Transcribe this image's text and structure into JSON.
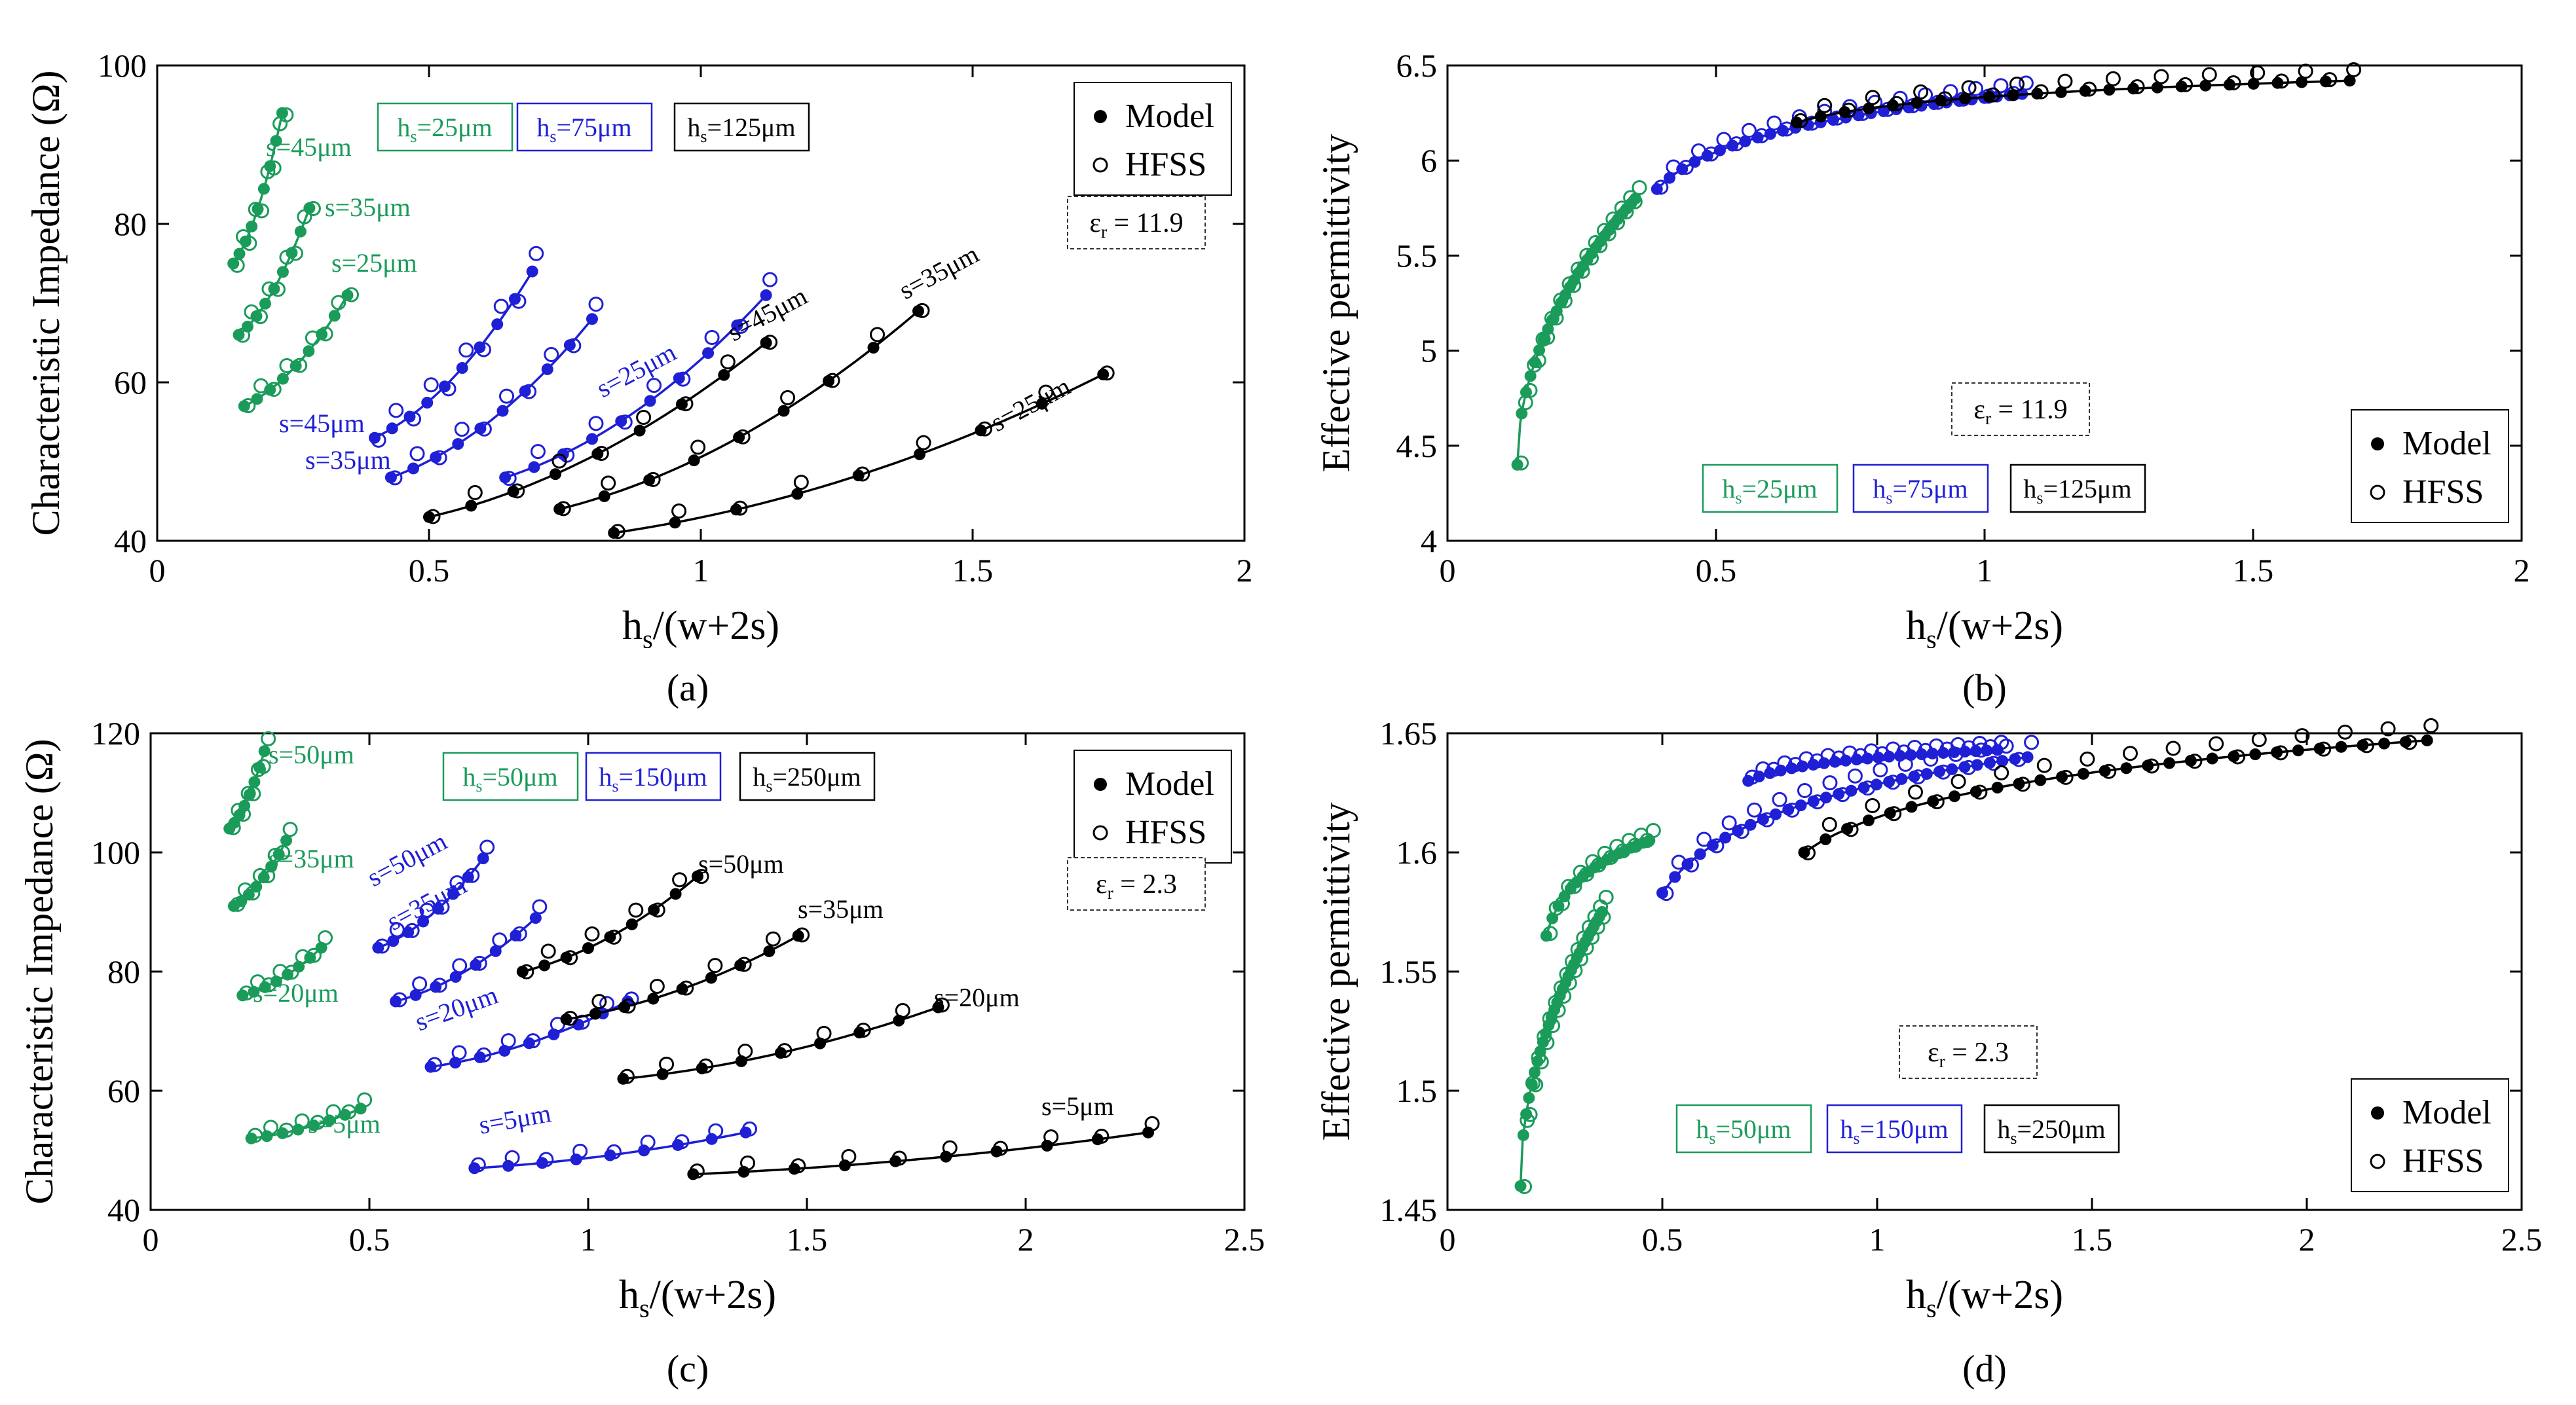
{
  "colors": {
    "green": "#1a9b5a",
    "blue": "#1f1fd6",
    "black": "#000000"
  },
  "chart_data": [
    {
      "id": "a",
      "caption": "(a)",
      "type": "scatter",
      "xlabel_main": "h",
      "xlabel_sub": "s",
      "xlabel_rest": "/(w+2s)",
      "ylabel": "Characteristic Impedance (Ω)",
      "xlim": [
        0,
        2
      ],
      "ylim": [
        40,
        100
      ],
      "xticks": [
        0,
        0.5,
        1,
        1.5,
        2
      ],
      "xtick_labels": [
        "0",
        "0.5",
        "1",
        "1.5",
        "2"
      ],
      "yticks": [
        40,
        60,
        80,
        100
      ],
      "ytick_labels": [
        "40",
        "60",
        "80",
        "100"
      ],
      "grid": false,
      "legend": {
        "position": "top-right",
        "model_label": "Model",
        "hfss_label": "HFSS"
      },
      "er_box": {
        "prefix": "ε",
        "sub": "r",
        "suffix": " = 11.9"
      },
      "hs_boxes": [
        {
          "color": "green",
          "prefix": "h",
          "sub": "s",
          "suffix": "=25μm"
        },
        {
          "color": "blue",
          "prefix": "h",
          "sub": "s",
          "suffix": "=75μm"
        },
        {
          "color": "black",
          "prefix": "h",
          "sub": "s",
          "suffix": "=125μm"
        }
      ],
      "series": [
        {
          "color": "green",
          "label": "s=45μm",
          "x0": 0.14,
          "x1": 0.23,
          "y0": 75,
          "y1": 94,
          "n": 9,
          "dy": 1.5
        },
        {
          "color": "green",
          "label": "s=35μm",
          "x0": 0.15,
          "x1": 0.28,
          "y0": 66,
          "y1": 82,
          "n": 9,
          "dy": 1.2
        },
        {
          "color": "green",
          "label": "s=25μm",
          "x0": 0.16,
          "x1": 0.35,
          "y0": 57,
          "y1": 71,
          "n": 9,
          "dy": 1.0
        },
        {
          "color": "blue",
          "label": "s=45μm",
          "x0": 0.4,
          "x1": 0.69,
          "y0": 53,
          "y1": 74,
          "n": 10,
          "dy": 1.6
        },
        {
          "color": "blue",
          "label": "s=35μm",
          "x0": 0.43,
          "x1": 0.8,
          "y0": 48,
          "y1": 68,
          "n": 10,
          "dy": 1.2
        },
        {
          "color": "blue",
          "label": "s=25μm",
          "x0": 0.64,
          "x1": 1.12,
          "y0": 48,
          "y1": 71,
          "n": 10,
          "dy": 1.3
        },
        {
          "color": "black",
          "label": "s=45μm",
          "x0": 0.5,
          "x1": 1.12,
          "y0": 43,
          "y1": 65,
          "n": 9,
          "dy": 1.0
        },
        {
          "color": "black",
          "label": "s=35μm",
          "x0": 0.74,
          "x1": 1.4,
          "y0": 44,
          "y1": 69,
          "n": 9,
          "dy": 1.0
        },
        {
          "color": "black",
          "label": "s=25μm",
          "x0": 0.84,
          "x1": 1.74,
          "y0": 41,
          "y1": 61,
          "n": 9,
          "dy": 0.8
        }
      ]
    },
    {
      "id": "b",
      "caption": "(b)",
      "type": "scatter",
      "xlabel_main": "h",
      "xlabel_sub": "s",
      "xlabel_rest": "/(w+2s)",
      "ylabel": "Effective permittivity",
      "xlim": [
        0,
        2
      ],
      "ylim": [
        4,
        6.5
      ],
      "xticks": [
        0,
        0.5,
        1,
        1.5,
        2
      ],
      "xtick_labels": [
        "0",
        "0.5",
        "1",
        "1.5",
        "2"
      ],
      "yticks": [
        4,
        4.5,
        5,
        5.5,
        6,
        6.5
      ],
      "ytick_labels": [
        "4",
        "4.5",
        "5",
        "5.5",
        "6",
        "6.5"
      ],
      "grid": false,
      "legend": {
        "position": "bottom-right",
        "model_label": "Model",
        "hfss_label": "HFSS"
      },
      "er_box": {
        "prefix": "ε",
        "sub": "r",
        "suffix": " = 11.9"
      },
      "hs_boxes": [
        {
          "color": "green",
          "prefix": "h",
          "sub": "s",
          "suffix": "=25μm"
        },
        {
          "color": "blue",
          "prefix": "h",
          "sub": "s",
          "suffix": "=75μm"
        },
        {
          "color": "black",
          "prefix": "h",
          "sub": "s",
          "suffix": "=125μm"
        }
      ],
      "series": [
        {
          "color": "green",
          "x0": 0.13,
          "x1": 0.35,
          "y0": 4.4,
          "y1": 5.8,
          "n": 28,
          "dy": 0.03,
          "shape": "sqrt"
        },
        {
          "color": "blue",
          "x0": 0.39,
          "x1": 1.07,
          "y0": 5.85,
          "y1": 6.35,
          "n": 30,
          "dy": 0.03,
          "shape": "log"
        },
        {
          "color": "black",
          "x0": 0.65,
          "x1": 1.68,
          "y0": 6.2,
          "y1": 6.42,
          "n": 24,
          "dy": 0.03,
          "shape": "log"
        }
      ]
    },
    {
      "id": "c",
      "caption": "(c)",
      "type": "scatter",
      "xlabel_main": "h",
      "xlabel_sub": "s",
      "xlabel_rest": "/(w+2s)",
      "ylabel": "Characteristic Impedance (Ω)",
      "xlim": [
        0,
        2.5
      ],
      "ylim": [
        40,
        120
      ],
      "xticks": [
        0,
        0.5,
        1,
        1.5,
        2,
        2.5
      ],
      "xtick_labels": [
        "0",
        "0.5",
        "1",
        "1.5",
        "2",
        "2.5"
      ],
      "yticks": [
        40,
        60,
        80,
        100,
        120
      ],
      "ytick_labels": [
        "40",
        "60",
        "80",
        "100",
        "120"
      ],
      "grid": false,
      "legend": {
        "position": "top-right",
        "model_label": "Model",
        "hfss_label": "HFSS"
      },
      "er_box": {
        "prefix": "ε",
        "sub": "r",
        "suffix": " = 2.3"
      },
      "hs_boxes": [
        {
          "color": "green",
          "prefix": "h",
          "sub": "s",
          "suffix": "=50μm"
        },
        {
          "color": "blue",
          "prefix": "h",
          "sub": "s",
          "suffix": "=150μm"
        },
        {
          "color": "black",
          "prefix": "h",
          "sub": "s",
          "suffix": "=250μm"
        }
      ],
      "series": [
        {
          "color": "green",
          "label": "s=50μm",
          "x0": 0.18,
          "x1": 0.26,
          "y0": 104,
          "y1": 117,
          "n": 8,
          "dy": 1.2
        },
        {
          "color": "green",
          "label": "s=35μm",
          "x0": 0.19,
          "x1": 0.31,
          "y0": 91,
          "y1": 102,
          "n": 8,
          "dy": 1.0
        },
        {
          "color": "green",
          "label": "s=20μm",
          "x0": 0.21,
          "x1": 0.39,
          "y0": 76,
          "y1": 84,
          "n": 8,
          "dy": 0.8
        },
        {
          "color": "green",
          "label": "s=5μm",
          "x0": 0.23,
          "x1": 0.48,
          "y0": 52,
          "y1": 57,
          "n": 8,
          "dy": 0.6
        },
        {
          "color": "blue",
          "label": "s=50μm",
          "x0": 0.52,
          "x1": 0.76,
          "y0": 84,
          "y1": 99,
          "n": 8,
          "dy": 1.0
        },
        {
          "color": "blue",
          "label": "s=35μm",
          "x0": 0.56,
          "x1": 0.88,
          "y0": 75,
          "y1": 89,
          "n": 8,
          "dy": 1.0
        },
        {
          "color": "blue",
          "label": "s=20μm",
          "x0": 0.64,
          "x1": 1.09,
          "y0": 64,
          "y1": 75,
          "n": 9,
          "dy": 0.8
        },
        {
          "color": "blue",
          "label": "s=5μm",
          "x0": 0.74,
          "x1": 1.36,
          "y0": 47,
          "y1": 53,
          "n": 9,
          "dy": 0.5
        },
        {
          "color": "black",
          "label": "s=50μm",
          "x0": 0.85,
          "x1": 1.25,
          "y0": 80,
          "y1": 96,
          "n": 9,
          "dy": 1.5
        },
        {
          "color": "black",
          "label": "s=35μm",
          "x0": 0.95,
          "x1": 1.48,
          "y0": 72,
          "y1": 86,
          "n": 9,
          "dy": 1.2
        },
        {
          "color": "black",
          "label": "s=20μm",
          "x0": 1.08,
          "x1": 1.8,
          "y0": 62,
          "y1": 74,
          "n": 9,
          "dy": 0.8
        },
        {
          "color": "black",
          "label": "s=5μm",
          "x0": 1.24,
          "x1": 2.28,
          "y0": 46,
          "y1": 53,
          "n": 10,
          "dy": 0.6
        }
      ]
    },
    {
      "id": "d",
      "caption": "(d)",
      "type": "scatter",
      "xlabel_main": "h",
      "xlabel_sub": "s",
      "xlabel_rest": "/(w+2s)",
      "ylabel": "Effective permittivity",
      "xlim": [
        0,
        2.5
      ],
      "ylim": [
        1.45,
        1.65
      ],
      "xticks": [
        0,
        0.5,
        1,
        1.5,
        2,
        2.5
      ],
      "xtick_labels": [
        "0",
        "0.5",
        "1",
        "1.5",
        "2",
        "2.5"
      ],
      "yticks": [
        1.45,
        1.5,
        1.55,
        1.6,
        1.65
      ],
      "ytick_labels": [
        "1.45",
        "1.5",
        "1.55",
        "1.6",
        "1.65"
      ],
      "grid": false,
      "legend": {
        "position": "bottom-right",
        "model_label": "Model",
        "hfss_label": "HFSS"
      },
      "er_box": {
        "prefix": "ε",
        "sub": "r",
        "suffix": " = 2.3"
      },
      "hs_boxes": [
        {
          "color": "green",
          "prefix": "h",
          "sub": "s",
          "suffix": "=50μm"
        },
        {
          "color": "blue",
          "prefix": "h",
          "sub": "s",
          "suffix": "=150μm"
        },
        {
          "color": "black",
          "prefix": "h",
          "sub": "s",
          "suffix": "=250μm"
        }
      ],
      "series": [
        {
          "color": "green",
          "x0": 0.17,
          "x1": 0.36,
          "y0": 1.46,
          "y1": 1.575,
          "n": 30,
          "dy": 0.004,
          "shape": "sqrt"
        },
        {
          "color": "green",
          "x0": 0.23,
          "x1": 0.47,
          "y0": 1.565,
          "y1": 1.605,
          "n": 18,
          "dy": 0.002,
          "shape": "log"
        },
        {
          "color": "blue",
          "x0": 0.5,
          "x1": 1.35,
          "y0": 1.583,
          "y1": 1.64,
          "n": 30,
          "dy": 0.004,
          "shape": "log"
        },
        {
          "color": "blue",
          "x0": 0.7,
          "x1": 1.28,
          "y0": 1.63,
          "y1": 1.643,
          "n": 24,
          "dy": 0.001,
          "shape": "log"
        },
        {
          "color": "black",
          "x0": 0.83,
          "x1": 2.28,
          "y0": 1.6,
          "y1": 1.647,
          "n": 30,
          "dy": 0.004,
          "shape": "log"
        }
      ]
    }
  ]
}
